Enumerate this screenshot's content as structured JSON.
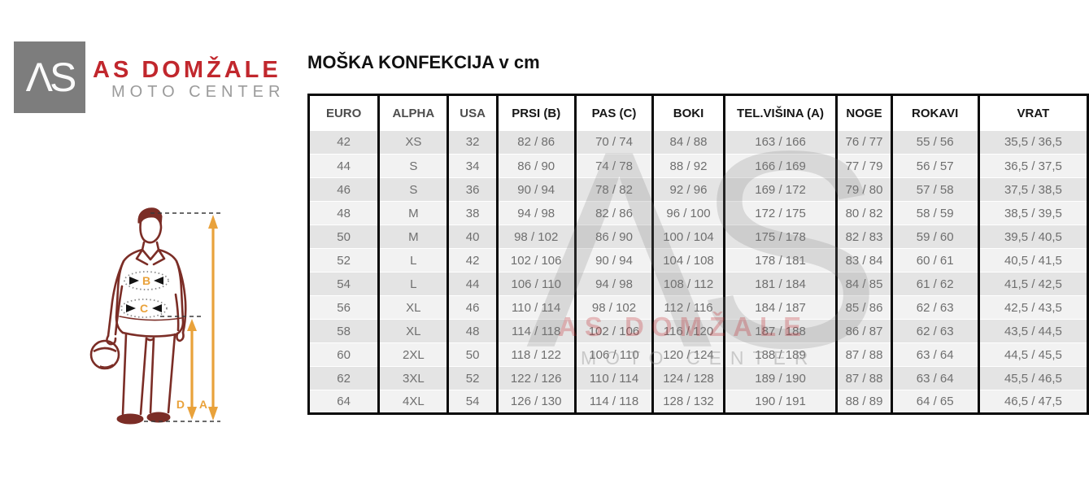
{
  "brand": {
    "logo_monogram": "ΛS",
    "name": "AS DOMŽALE",
    "subtitle": "MOTO CENTER"
  },
  "title": "MOŠKA KONFEKCIJA v cm",
  "diagram": {
    "labels": {
      "chest": "B",
      "waist": "C",
      "inseam": "D",
      "height": "A"
    }
  },
  "watermark": {
    "monogram": "ΛS",
    "line1": "AS DOMŽALE",
    "line2": "MOTO CENTER"
  },
  "table": {
    "columns": [
      "EURO",
      "ALPHA",
      "USA",
      "PRSI (B)",
      "PAS (C)",
      "BOKI",
      "TEL.VIŠINA (A)",
      "NOGE",
      "ROKAVI",
      "VRAT"
    ],
    "rows": [
      [
        "42",
        "XS",
        "32",
        "82 / 86",
        "70 / 74",
        "84 / 88",
        "163 / 166",
        "76 / 77",
        "55 / 56",
        "35,5 / 36,5"
      ],
      [
        "44",
        "S",
        "34",
        "86 / 90",
        "74 / 78",
        "88 / 92",
        "166 / 169",
        "77 / 79",
        "56 / 57",
        "36,5 / 37,5"
      ],
      [
        "46",
        "S",
        "36",
        "90 / 94",
        "78 / 82",
        "92 / 96",
        "169 / 172",
        "79 / 80",
        "57 / 58",
        "37,5 / 38,5"
      ],
      [
        "48",
        "M",
        "38",
        "94 / 98",
        "82 / 86",
        "96 / 100",
        "172 / 175",
        "80 / 82",
        "58 / 59",
        "38,5 / 39,5"
      ],
      [
        "50",
        "M",
        "40",
        "98 / 102",
        "86 / 90",
        "100 / 104",
        "175 / 178",
        "82 / 83",
        "59 / 60",
        "39,5 / 40,5"
      ],
      [
        "52",
        "L",
        "42",
        "102 / 106",
        "90 / 94",
        "104 / 108",
        "178 / 181",
        "83 / 84",
        "60 / 61",
        "40,5 / 41,5"
      ],
      [
        "54",
        "L",
        "44",
        "106 / 110",
        "94 / 98",
        "108 / 112",
        "181 / 184",
        "84 / 85",
        "61 / 62",
        "41,5 / 42,5"
      ],
      [
        "56",
        "XL",
        "46",
        "110 / 114",
        "98 / 102",
        "112 / 116",
        "184 / 187",
        "85 / 86",
        "62 / 63",
        "42,5 / 43,5"
      ],
      [
        "58",
        "XL",
        "48",
        "114 / 118",
        "102 / 106",
        "116 / 120",
        "187 / 188",
        "86 / 87",
        "62 / 63",
        "43,5 / 44,5"
      ],
      [
        "60",
        "2XL",
        "50",
        "118 / 122",
        "106 / 110",
        "120 / 124",
        "188 / 189",
        "87 / 88",
        "63 / 64",
        "44,5 / 45,5"
      ],
      [
        "62",
        "3XL",
        "52",
        "122 / 126",
        "110 / 114",
        "124 / 128",
        "189 / 190",
        "87 / 88",
        "63 / 64",
        "45,5 / 46,5"
      ],
      [
        "64",
        "4XL",
        "54",
        "126 / 130",
        "114 / 118",
        "128 / 132",
        "190 / 191",
        "88 / 89",
        "64 / 65",
        "46,5 / 47,5"
      ]
    ]
  },
  "chart_data": {
    "type": "table",
    "title": "MOŠKA KONFEKCIJA v cm",
    "columns": [
      "EURO",
      "ALPHA",
      "USA",
      "PRSI (B)",
      "PAS (C)",
      "BOKI",
      "TEL.VIŠINA (A)",
      "NOGE",
      "ROKAVI",
      "VRAT"
    ],
    "rows": [
      [
        "42",
        "XS",
        "32",
        "82 / 86",
        "70 / 74",
        "84 / 88",
        "163 / 166",
        "76 / 77",
        "55 / 56",
        "35,5 / 36,5"
      ],
      [
        "44",
        "S",
        "34",
        "86 / 90",
        "74 / 78",
        "88 / 92",
        "166 / 169",
        "77 / 79",
        "56 / 57",
        "36,5 / 37,5"
      ],
      [
        "46",
        "S",
        "36",
        "90 / 94",
        "78 / 82",
        "92 / 96",
        "169 / 172",
        "79 / 80",
        "57 / 58",
        "37,5 / 38,5"
      ],
      [
        "48",
        "M",
        "38",
        "94 / 98",
        "82 / 86",
        "96 / 100",
        "172 / 175",
        "80 / 82",
        "58 / 59",
        "38,5 / 39,5"
      ],
      [
        "50",
        "M",
        "40",
        "98 / 102",
        "86 / 90",
        "100 / 104",
        "175 / 178",
        "82 / 83",
        "59 / 60",
        "39,5 / 40,5"
      ],
      [
        "52",
        "L",
        "42",
        "102 / 106",
        "90 / 94",
        "104 / 108",
        "178 / 181",
        "83 / 84",
        "60 / 61",
        "40,5 / 41,5"
      ],
      [
        "54",
        "L",
        "44",
        "106 / 110",
        "94 / 98",
        "108 / 112",
        "181 / 184",
        "84 / 85",
        "61 / 62",
        "41,5 / 42,5"
      ],
      [
        "56",
        "XL",
        "46",
        "110 / 114",
        "98 / 102",
        "112 / 116",
        "184 / 187",
        "85 / 86",
        "62 / 63",
        "42,5 / 43,5"
      ],
      [
        "58",
        "XL",
        "48",
        "114 / 118",
        "102 / 106",
        "116 / 120",
        "187 / 188",
        "86 / 87",
        "62 / 63",
        "43,5 / 44,5"
      ],
      [
        "60",
        "2XL",
        "50",
        "118 / 122",
        "106 / 110",
        "120 / 124",
        "188 / 189",
        "87 / 88",
        "63 / 64",
        "44,5 / 45,5"
      ],
      [
        "62",
        "3XL",
        "52",
        "122 / 126",
        "110 / 114",
        "124 / 128",
        "189 / 190",
        "87 / 88",
        "63 / 64",
        "45,5 / 46,5"
      ],
      [
        "64",
        "4XL",
        "54",
        "126 / 130",
        "114 / 118",
        "128 / 132",
        "190 / 191",
        "88 / 89",
        "64 / 65",
        "46,5 / 47,5"
      ]
    ]
  },
  "colors": {
    "brand_red": "#C1272D",
    "logo_gray": "#7d7d7d",
    "sub_gray": "#9b9b9b",
    "border_black": "#0a0a0a",
    "cell_text": "#6f6f6f",
    "hdr_text": "#161616",
    "hdr_muted": "#4d4d4d",
    "row_dark": "#e4e4e4",
    "row_light": "#f2f2f2",
    "figure_maroon": "#7b2d26",
    "arrow_orange": "#E9A23B"
  }
}
